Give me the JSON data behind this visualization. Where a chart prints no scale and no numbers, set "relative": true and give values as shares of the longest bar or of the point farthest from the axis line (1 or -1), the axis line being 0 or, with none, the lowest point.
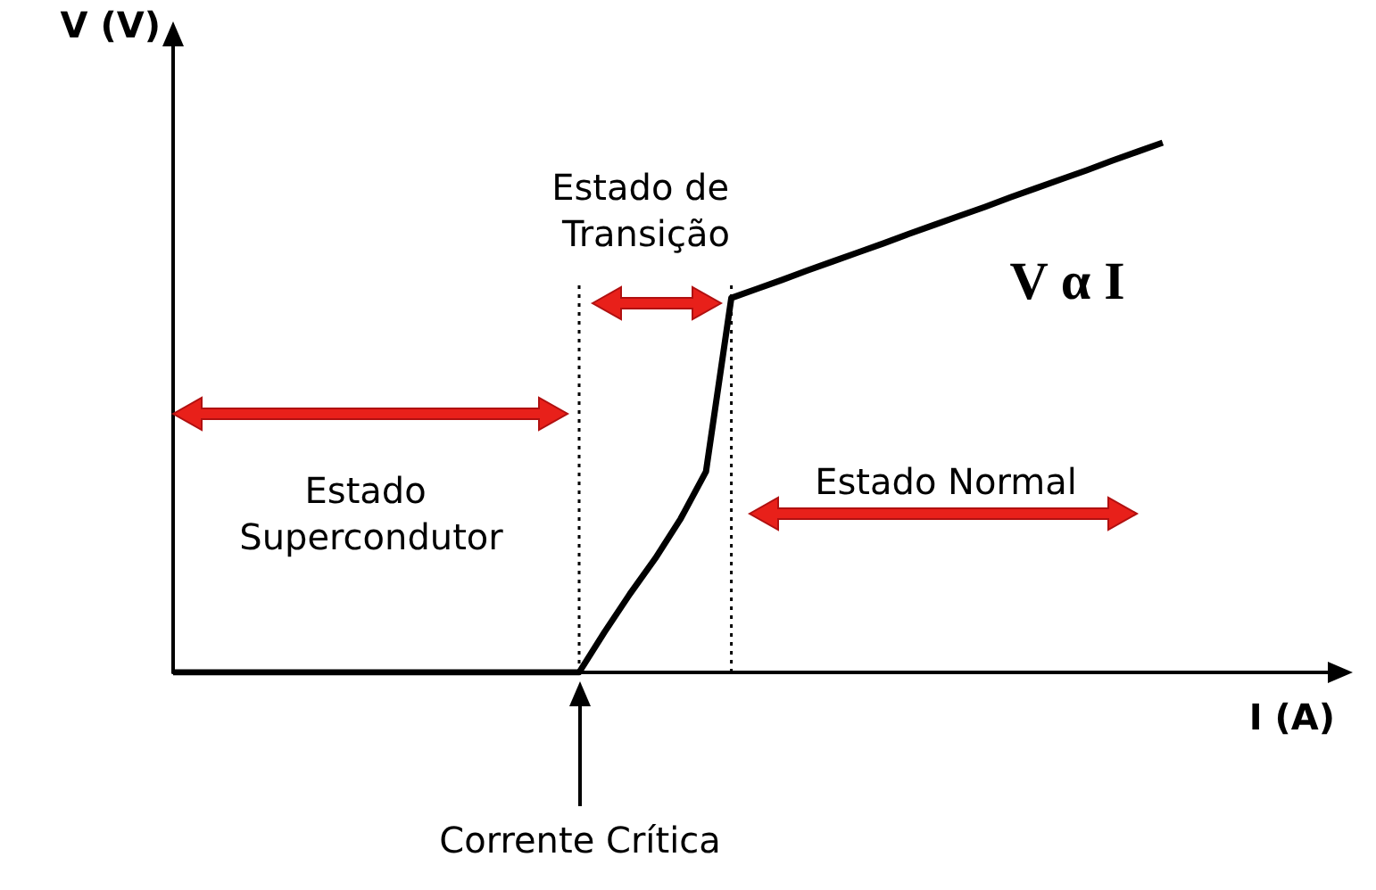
{
  "chart_data": {
    "type": "line",
    "relative": true,
    "xlabel": "I (A)",
    "ylabel": "V (V)",
    "tick_labels": false,
    "grid": false,
    "marker": "none",
    "line_style": "solid",
    "categories": [
      null,
      null,
      null,
      null,
      null,
      null,
      null,
      null,
      null,
      null,
      null,
      null,
      null,
      null,
      null,
      null,
      null,
      null,
      null,
      null,
      null,
      null,
      null,
      null,
      null,
      null,
      null,
      null,
      null,
      null,
      null,
      null,
      null,
      null,
      null,
      null,
      null,
      null,
      null,
      null,
      null,
      null,
      null,
      null,
      null,
      null,
      null
    ],
    "series": [
      {
        "color": "#000000",
        "values": [
          0,
          0,
          0,
          0,
          0,
          0,
          0,
          0,
          0,
          0,
          0,
          0,
          0,
          0,
          0,
          0,
          0,
          0.076,
          0.148,
          0.215,
          0.29,
          0.379,
          0.707,
          0.724,
          0.741,
          0.759,
          0.776,
          0.793,
          0.81,
          0.828,
          0.845,
          0.862,
          0.879,
          0.897,
          0.914,
          0.931,
          0.948,
          0.966,
          0.983,
          1,
          null,
          null,
          null,
          null,
          null,
          null,
          null
        ]
      }
    ],
    "annotations": [
      "Estado de Transição",
      "Estado Supercondutor",
      "Estado Normal",
      "Corrente Crítica",
      "V α I"
    ]
  }
}
